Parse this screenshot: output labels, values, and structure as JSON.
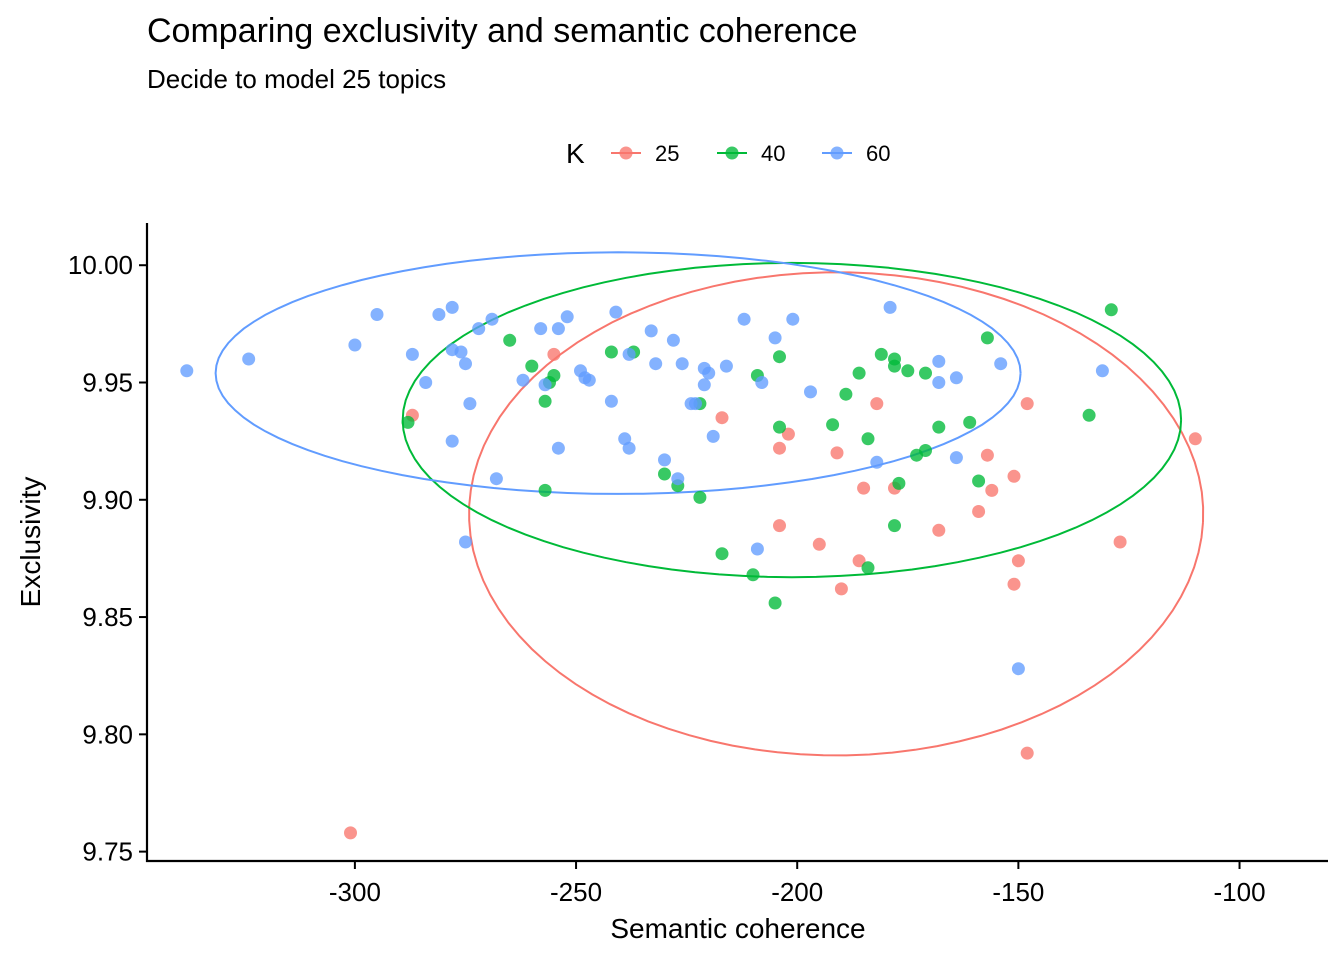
{
  "chart": {
    "title": "Comparing exclusivity and semantic coherence",
    "subtitle": "Decide to model 25 topics"
  },
  "chart_data": {
    "type": "scatter",
    "title": "Comparing exclusivity and semantic coherence",
    "subtitle": "Decide to model 25 topics",
    "xlabel": "Semantic coherence",
    "ylabel": "Exclusivity",
    "xlim": [
      -347,
      -80
    ],
    "ylim": [
      9.746,
      10.018
    ],
    "xticks": [
      -300,
      -250,
      -200,
      -150,
      -100
    ],
    "xtick_labels": [
      "-300",
      "-250",
      "-200",
      "-150",
      "-100"
    ],
    "yticks": [
      9.75,
      9.8,
      9.85,
      9.9,
      9.95,
      10.0
    ],
    "ytick_labels": [
      "9.75",
      "9.80",
      "9.85",
      "9.90",
      "9.95",
      "10.00"
    ],
    "grid": false,
    "legend": {
      "title": "K",
      "position": "top",
      "entries": [
        "25",
        "40",
        "60"
      ]
    },
    "series": [
      {
        "name": "25",
        "color": "#F8766D",
        "ellipse": {
          "center": [
            -191.2,
            9.894
          ],
          "width_x": 166,
          "height_y": 0.206,
          "angle_deg": -2.0
        },
        "points": [
          [
            -287,
            9.936
          ],
          [
            -255,
            9.962
          ],
          [
            -217,
            9.935
          ],
          [
            -204,
            9.922
          ],
          [
            -202,
            9.928
          ],
          [
            -191,
            9.92
          ],
          [
            -182,
            9.941
          ],
          [
            -185,
            9.905
          ],
          [
            -178,
            9.905
          ],
          [
            -168,
            9.887
          ],
          [
            -157,
            9.919
          ],
          [
            -156,
            9.904
          ],
          [
            -159,
            9.895
          ],
          [
            -151,
            9.91
          ],
          [
            -150,
            9.874
          ],
          [
            -151,
            9.864
          ],
          [
            -148,
            9.941
          ],
          [
            -110,
            9.926
          ],
          [
            -127,
            9.882
          ],
          [
            -190,
            9.862
          ],
          [
            -186,
            9.874
          ],
          [
            -195,
            9.881
          ],
          [
            -204,
            9.889
          ],
          [
            -148,
            9.792
          ],
          [
            -301,
            9.758
          ]
        ]
      },
      {
        "name": "40",
        "color": "#00BA38",
        "ellipse": {
          "center": [
            -201.2,
            9.934
          ],
          "width_x": 176,
          "height_y": 0.134,
          "angle_deg": 0.0
        },
        "points": [
          [
            -288,
            9.933
          ],
          [
            -265,
            9.968
          ],
          [
            -260,
            9.957
          ],
          [
            -257,
            9.942
          ],
          [
            -256,
            9.95
          ],
          [
            -255,
            9.953
          ],
          [
            -257,
            9.904
          ],
          [
            -242,
            9.963
          ],
          [
            -237,
            9.963
          ],
          [
            -230,
            9.911
          ],
          [
            -227,
            9.906
          ],
          [
            -222,
            9.941
          ],
          [
            -222,
            9.901
          ],
          [
            -217,
            9.877
          ],
          [
            -210,
            9.868
          ],
          [
            -205,
            9.856
          ],
          [
            -204,
            9.931
          ],
          [
            -204,
            9.961
          ],
          [
            -209,
            9.953
          ],
          [
            -192,
            9.932
          ],
          [
            -189,
            9.945
          ],
          [
            -186,
            9.954
          ],
          [
            -184,
            9.926
          ],
          [
            -181,
            9.962
          ],
          [
            -178,
            9.957
          ],
          [
            -178,
            9.96
          ],
          [
            -177,
            9.907
          ],
          [
            -175,
            9.955
          ],
          [
            -171,
            9.954
          ],
          [
            -171,
            9.921
          ],
          [
            -173,
            9.919
          ],
          [
            -168,
            9.931
          ],
          [
            -161,
            9.933
          ],
          [
            -159,
            9.908
          ],
          [
            -157,
            9.969
          ],
          [
            -134,
            9.936
          ],
          [
            -129,
            9.981
          ],
          [
            -184,
            9.871
          ],
          [
            -178,
            9.889
          ]
        ]
      },
      {
        "name": "60",
        "color": "#619CFF",
        "ellipse": {
          "center": [
            -240.5,
            9.954
          ],
          "width_x": 182,
          "height_y": 0.103,
          "angle_deg": 0.0
        },
        "points": [
          [
            -338,
            9.955
          ],
          [
            -324,
            9.96
          ],
          [
            -300,
            9.966
          ],
          [
            -295,
            9.979
          ],
          [
            -287,
            9.962
          ],
          [
            -284,
            9.95
          ],
          [
            -281,
            9.979
          ],
          [
            -278,
            9.982
          ],
          [
            -278,
            9.964
          ],
          [
            -276,
            9.963
          ],
          [
            -275,
            9.958
          ],
          [
            -274,
            9.941
          ],
          [
            -278,
            9.925
          ],
          [
            -272,
            9.973
          ],
          [
            -269,
            9.977
          ],
          [
            -268,
            9.909
          ],
          [
            -275,
            9.882
          ],
          [
            -262,
            9.951
          ],
          [
            -258,
            9.973
          ],
          [
            -257,
            9.949
          ],
          [
            -254,
            9.973
          ],
          [
            -252,
            9.978
          ],
          [
            -249,
            9.955
          ],
          [
            -248,
            9.952
          ],
          [
            -247,
            9.951
          ],
          [
            -254,
            9.922
          ],
          [
            -241,
            9.98
          ],
          [
            -242,
            9.942
          ],
          [
            -239,
            9.926
          ],
          [
            -238,
            9.922
          ],
          [
            -238,
            9.962
          ],
          [
            -233,
            9.972
          ],
          [
            -232,
            9.958
          ],
          [
            -230,
            9.917
          ],
          [
            -228,
            9.968
          ],
          [
            -226,
            9.958
          ],
          [
            -227,
            9.909
          ],
          [
            -223,
            9.941
          ],
          [
            -224,
            9.941
          ],
          [
            -221,
            9.956
          ],
          [
            -220,
            9.954
          ],
          [
            -221,
            9.949
          ],
          [
            -219,
            9.927
          ],
          [
            -216,
            9.957
          ],
          [
            -212,
            9.977
          ],
          [
            -209,
            9.879
          ],
          [
            -205,
            9.969
          ],
          [
            -201,
            9.977
          ],
          [
            -208,
            9.95
          ],
          [
            -197,
            9.946
          ],
          [
            -182,
            9.916
          ],
          [
            -179,
            9.982
          ],
          [
            -168,
            9.959
          ],
          [
            -168,
            9.95
          ],
          [
            -164,
            9.918
          ],
          [
            -164,
            9.952
          ],
          [
            -154,
            9.958
          ],
          [
            -150,
            9.828
          ],
          [
            -131,
            9.955
          ]
        ]
      }
    ]
  }
}
